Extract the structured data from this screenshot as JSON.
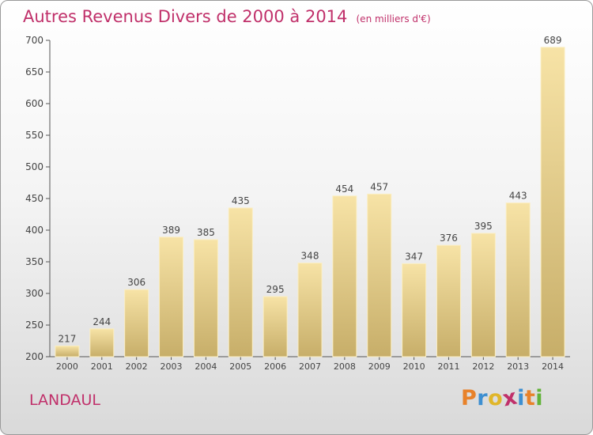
{
  "title": "Autres Revenus Divers de 2000 à 2014",
  "unit_note": "(en milliers d'€)",
  "commune": "LANDAUL",
  "logo_text": "Proxiti",
  "logo_colors": [
    "#e8822a",
    "#3d8fd1",
    "#e0b62a",
    "#c0306a",
    "#3d8fd1",
    "#e8822a",
    "#62b33a"
  ],
  "colors": {
    "accent": "#c0306a",
    "bar_light": "#f7e3a6",
    "bar_dark": "#c7ae69",
    "axis": "#555555"
  },
  "chart_data": {
    "type": "bar",
    "categories": [
      "2000",
      "2001",
      "2002",
      "2003",
      "2004",
      "2005",
      "2006",
      "2007",
      "2008",
      "2009",
      "2010",
      "2011",
      "2012",
      "2013",
      "2014"
    ],
    "values": [
      217,
      244,
      306,
      389,
      385,
      435,
      295,
      348,
      454,
      457,
      347,
      376,
      395,
      443,
      689
    ],
    "ylim": [
      200,
      700
    ],
    "yticks": [
      200,
      250,
      300,
      350,
      400,
      450,
      500,
      550,
      600,
      650,
      700
    ],
    "xlabel": "",
    "ylabel": "",
    "grid": false,
    "data_labels": true
  }
}
